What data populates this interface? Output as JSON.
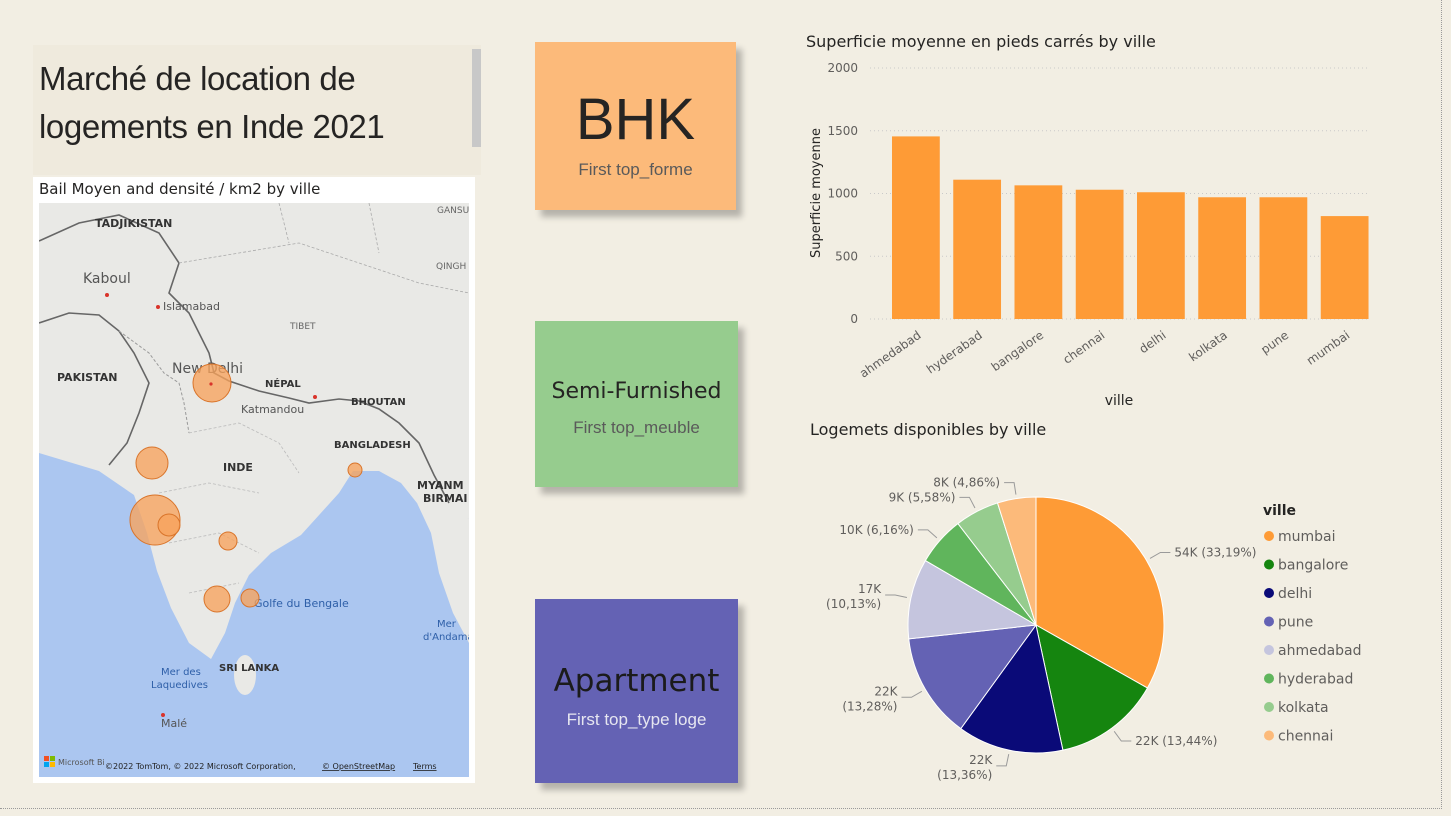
{
  "header": {
    "title_line1": "Marché de location de",
    "title_line2": "logements en Inde 2021"
  },
  "map": {
    "title": "Bail Moyen and densité / km2 by ville",
    "labels": {
      "tajikistan": "TADJIKISTAN",
      "kabul": "Kaboul",
      "islamabad": "Islamabad",
      "pakistan": "PAKISTAN",
      "tibet": "TIBET",
      "new_delhi": "New Delhi",
      "nepal": "NÉPAL",
      "kathmandu": "Katmandou",
      "bhutan": "BHOUTAN",
      "bangladesh": "BANGLADESH",
      "inde": "INDE",
      "myanmar1": "MYANM",
      "myanmar2": "BIRMAI",
      "gansu": "GANSU",
      "qinghai": "QINGH",
      "bay_bengal": "Golfe du Bengale",
      "andaman1": "Mer",
      "andaman2": "d'Andaman",
      "laccadive1": "Mer des",
      "laccadive2": "Laquedives",
      "sri_lanka": "SRI LANKA",
      "male": "Malé"
    },
    "footer": {
      "ms": "Microsoft Bi",
      "copyright": "©2022 TomTom, © 2022 Microsoft Corporation,",
      "osm": "© OpenStreetMap",
      "terms": "Terms"
    },
    "bubble_color": "#f7a35c"
  },
  "cards": [
    {
      "value": "BHK",
      "label": "First top_forme",
      "color": "#fcba7a"
    },
    {
      "value": "Semi-Furnished",
      "label": "First top_meuble",
      "color": "#96cc8e"
    },
    {
      "value": "Apartment",
      "label": "First top_type loge",
      "color": "#6462b4"
    }
  ],
  "chart_data": [
    {
      "type": "bar",
      "title": "Superficie moyenne en pieds carrés by ville",
      "xlabel": "ville",
      "ylabel": "Superficie moyenne",
      "categories": [
        "ahmedabad",
        "hyderabad",
        "bangalore",
        "chennai",
        "delhi",
        "kolkata",
        "pune",
        "mumbai"
      ],
      "values": [
        1455,
        1110,
        1065,
        1030,
        1010,
        970,
        970,
        820
      ],
      "ylim": [
        0,
        2000
      ],
      "yticks": [
        "0",
        "500",
        "1000",
        "1500",
        "2000"
      ],
      "grid": true,
      "color": "#fe9b36"
    },
    {
      "type": "pie",
      "title": "Logemets disponibles by ville",
      "legend_title": "ville",
      "legend_position": "right",
      "slices": [
        {
          "name": "mumbai",
          "value": 33.19,
          "label": "54K (33,19%)",
          "color": "#fe9b36"
        },
        {
          "name": "bangalore",
          "value": 13.44,
          "label": "22K (13,44%)",
          "color": "#15850f"
        },
        {
          "name": "delhi",
          "value": 13.36,
          "label": "22K (13,36%)",
          "color": "#0a0a78"
        },
        {
          "name": "pune",
          "value": 13.28,
          "label": "22K (13,28%)",
          "color": "#6462b4"
        },
        {
          "name": "ahmedabad",
          "value": 10.13,
          "label": "17K (10,13%)",
          "color": "#c5c5de"
        },
        {
          "name": "hyderabad",
          "value": 6.16,
          "label": "10K (6,16%)",
          "color": "#60b55c"
        },
        {
          "name": "kolkata",
          "value": 5.58,
          "label": "9K (5,58%)",
          "color": "#96cc8e"
        },
        {
          "name": "chennai",
          "value": 4.86,
          "label": "8K (4,86%)",
          "color": "#fcba7a"
        }
      ]
    }
  ]
}
